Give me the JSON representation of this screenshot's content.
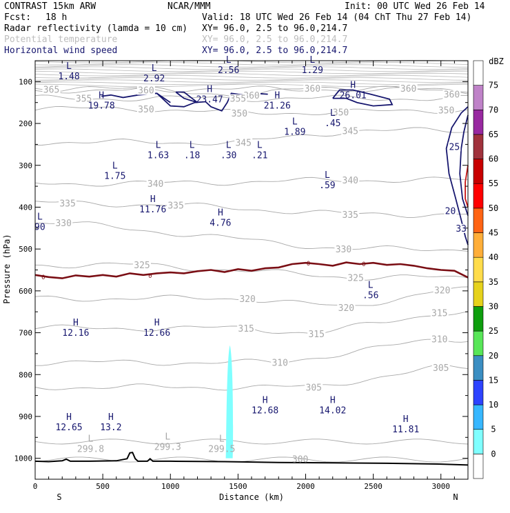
{
  "header": {
    "model": "CONTRAST 15km ARW",
    "org": "NCAR/MMM",
    "init": "Init: 00 UTC Wed 26 Feb 14",
    "fcst_label": "Fcst:",
    "fcst_value": "18 h",
    "valid": "Valid: 18 UTC Wed 26 Feb 14 (04 ChT Thu 27 Feb 14)",
    "fields": [
      {
        "name": "Radar reflectivity (lamda = 10 cm)",
        "xy": "XY=  96.0,  2.5 to  96.0,214.7",
        "color": "#000000"
      },
      {
        "name": "Potential temperature",
        "xy": "XY=  96.0,  2.5 to  96.0,214.7",
        "color": "#bdbdbd"
      },
      {
        "name": "Horizontal wind speed",
        "xy": "XY=  96.0,  2.5 to  96.0,214.7",
        "color": "#16166e"
      }
    ]
  },
  "chart_data": {
    "type": "cross-section",
    "xlabel": "Distance (km)",
    "ylabel": "Pressure (hPa)",
    "xlim": [
      0,
      3200
    ],
    "ylim": [
      1050,
      50
    ],
    "x_ticks": [
      0,
      500,
      1000,
      1500,
      2000,
      2500,
      3000
    ],
    "y_ticks": [
      100,
      200,
      300,
      400,
      500,
      600,
      700,
      800,
      900,
      1000
    ],
    "end_labels": {
      "left": "S",
      "right": "N"
    },
    "theta_isolines": [
      {
        "value": "365",
        "x": 120,
        "p": 118
      },
      {
        "value": "360",
        "x": 820,
        "p": 120
      },
      {
        "value": "360",
        "x": 1600,
        "p": 132
      },
      {
        "value": "360",
        "x": 2050,
        "p": 116
      },
      {
        "value": "360",
        "x": 2760,
        "p": 116
      },
      {
        "value": "360",
        "x": 3080,
        "p": 130
      },
      {
        "value": "355",
        "x": 360,
        "p": 140
      },
      {
        "value": "355",
        "x": 1500,
        "p": 140
      },
      {
        "value": "350",
        "x": 820,
        "p": 165
      },
      {
        "value": "350",
        "x": 1510,
        "p": 175
      },
      {
        "value": "350",
        "x": 2260,
        "p": 173
      },
      {
        "value": "350",
        "x": 3040,
        "p": 168
      },
      {
        "value": "345",
        "x": 1540,
        "p": 245
      },
      {
        "value": "345",
        "x": 2330,
        "p": 217
      },
      {
        "value": "340",
        "x": 890,
        "p": 343
      },
      {
        "value": "340",
        "x": 2330,
        "p": 335
      },
      {
        "value": "335",
        "x": 240,
        "p": 390
      },
      {
        "value": "335",
        "x": 1040,
        "p": 395
      },
      {
        "value": "335",
        "x": 2330,
        "p": 417
      },
      {
        "value": "330",
        "x": 210,
        "p": 437
      },
      {
        "value": "330",
        "x": 2280,
        "p": 500
      },
      {
        "value": "325",
        "x": 790,
        "p": 538
      },
      {
        "value": "325",
        "x": 2370,
        "p": 568
      },
      {
        "value": "320",
        "x": 1570,
        "p": 618
      },
      {
        "value": "320",
        "x": 2300,
        "p": 640
      },
      {
        "value": "320",
        "x": 3010,
        "p": 598
      },
      {
        "value": "315",
        "x": 1560,
        "p": 689
      },
      {
        "value": "315",
        "x": 2080,
        "p": 702
      },
      {
        "value": "315",
        "x": 2990,
        "p": 652
      },
      {
        "value": "310",
        "x": 1810,
        "p": 771
      },
      {
        "value": "310",
        "x": 2990,
        "p": 715
      },
      {
        "value": "305",
        "x": 2060,
        "p": 830
      },
      {
        "value": "305",
        "x": 3000,
        "p": 783
      }
    ],
    "surface_theta": [
      {
        "symbol": "L",
        "x": 410,
        "p": 960,
        "value": "299.8"
      },
      {
        "symbol": "L",
        "x": 980,
        "p": 955,
        "value": "299.3"
      },
      {
        "symbol": "L",
        "x": 1380,
        "p": 960,
        "value": "299.5"
      },
      {
        "symbol": "",
        "x": 1960,
        "p": 1003,
        "value": "300"
      }
    ],
    "wind_extrema": [
      {
        "symbol": "L",
        "x": 250,
        "p": 70,
        "value": "1.48"
      },
      {
        "symbol": "L",
        "x": 880,
        "p": 75,
        "value": "2.92"
      },
      {
        "symbol": "L",
        "x": 1430,
        "p": 55,
        "value": "2.56"
      },
      {
        "symbol": "L",
        "x": 2050,
        "p": 55,
        "value": "1.29"
      },
      {
        "symbol": "H",
        "x": 490,
        "p": 140,
        "value": "19.78"
      },
      {
        "symbol": "H",
        "x": 1290,
        "p": 125,
        "value": "23.47"
      },
      {
        "symbol": "H",
        "x": 1790,
        "p": 140,
        "value": "21.26"
      },
      {
        "symbol": "H",
        "x": 2350,
        "p": 115,
        "value": "26.01"
      },
      {
        "symbol": "L",
        "x": 1920,
        "p": 202,
        "value": "1.89"
      },
      {
        "symbol": "L",
        "x": 2200,
        "p": 182,
        "value": ".45"
      },
      {
        "symbol": "L",
        "x": 910,
        "p": 258,
        "value": "1.63"
      },
      {
        "symbol": "L",
        "x": 1160,
        "p": 258,
        "value": ".18"
      },
      {
        "symbol": "L",
        "x": 1430,
        "p": 258,
        "value": ".30"
      },
      {
        "symbol": "L",
        "x": 1660,
        "p": 258,
        "value": ".21"
      },
      {
        "symbol": "L",
        "x": 590,
        "p": 308,
        "value": "1.75"
      },
      {
        "symbol": "L",
        "x": 2160,
        "p": 330,
        "value": ".59"
      },
      {
        "symbol": "H",
        "x": 870,
        "p": 388,
        "value": "11.76"
      },
      {
        "symbol": "H",
        "x": 1370,
        "p": 420,
        "value": "4.76"
      },
      {
        "symbol": "L",
        "x": 35,
        "p": 430,
        "value": "90"
      },
      {
        "symbol": "L",
        "x": 2480,
        "p": 593,
        "value": ".56"
      },
      {
        "symbol": "H",
        "x": 300,
        "p": 683,
        "value": "12.16"
      },
      {
        "symbol": "H",
        "x": 900,
        "p": 683,
        "value": "12.66"
      },
      {
        "symbol": "H",
        "x": 1700,
        "p": 868,
        "value": "12.68"
      },
      {
        "symbol": "H",
        "x": 2200,
        "p": 868,
        "value": "14.02"
      },
      {
        "symbol": "H",
        "x": 2740,
        "p": 913,
        "value": "11.81"
      },
      {
        "symbol": "H",
        "x": 250,
        "p": 908,
        "value": "12.65"
      },
      {
        "symbol": "H",
        "x": 560,
        "p": 908,
        "value": "13.2"
      }
    ],
    "wind_contour_labels": [
      {
        "value": "25",
        "x": 3100,
        "p": 255
      },
      {
        "value": "20",
        "x": 3070,
        "p": 408
      },
      {
        "value": "33",
        "x": 3150,
        "p": 450
      }
    ],
    "freezing_level": {
      "label": "0",
      "label_positions": [
        {
          "x": 60,
          "p": 566
        },
        {
          "x": 850,
          "p": 562
        },
        {
          "x": 2020,
          "p": 533
        },
        {
          "x": 2430,
          "p": 534
        }
      ],
      "points": [
        [
          0,
          562
        ],
        [
          100,
          567
        ],
        [
          200,
          570
        ],
        [
          300,
          563
        ],
        [
          400,
          566
        ],
        [
          500,
          562
        ],
        [
          600,
          566
        ],
        [
          700,
          558
        ],
        [
          800,
          562
        ],
        [
          900,
          558
        ],
        [
          1000,
          556
        ],
        [
          1100,
          558
        ],
        [
          1200,
          553
        ],
        [
          1300,
          550
        ],
        [
          1400,
          555
        ],
        [
          1500,
          548
        ],
        [
          1600,
          552
        ],
        [
          1700,
          546
        ],
        [
          1800,
          544
        ],
        [
          1900,
          536
        ],
        [
          2000,
          533
        ],
        [
          2100,
          536
        ],
        [
          2200,
          540
        ],
        [
          2300,
          532
        ],
        [
          2400,
          536
        ],
        [
          2500,
          533
        ],
        [
          2600,
          538
        ],
        [
          2700,
          536
        ],
        [
          2800,
          540
        ],
        [
          2900,
          546
        ],
        [
          3000,
          550
        ],
        [
          3100,
          552
        ],
        [
          3200,
          568
        ]
      ]
    },
    "reflectivity_cells": [
      {
        "dbz": 5,
        "x_center": 1440,
        "p_top": 730,
        "p_bottom": 1000
      }
    ],
    "terrain": {
      "points": [
        [
          0,
          1007
        ],
        [
          100,
          1008
        ],
        [
          200,
          1006
        ],
        [
          230,
          1002
        ],
        [
          260,
          1007
        ],
        [
          400,
          1007
        ],
        [
          600,
          1006
        ],
        [
          680,
          1001
        ],
        [
          700,
          987
        ],
        [
          720,
          986
        ],
        [
          740,
          1001
        ],
        [
          760,
          1007
        ],
        [
          830,
          1007
        ],
        [
          850,
          1001
        ],
        [
          870,
          1007
        ],
        [
          1000,
          1007
        ],
        [
          1400,
          1008
        ],
        [
          1800,
          1010
        ],
        [
          2200,
          1011
        ],
        [
          2600,
          1012
        ],
        [
          3000,
          1014
        ],
        [
          3200,
          1016
        ]
      ]
    },
    "colorbar": {
      "title": "dBZ",
      "levels": [
        "0",
        "5",
        "10",
        "15",
        "20",
        "25",
        "30",
        "35",
        "40",
        "45",
        "50",
        "55",
        "60",
        "65",
        "70",
        "75"
      ],
      "colors": [
        "#ffffff",
        "#7fffff",
        "#37b7ff",
        "#2d43ff",
        "#3b8ec2",
        "#58e658",
        "#0e9e0e",
        "#e6d21c",
        "#ffdc4b",
        "#ffae39",
        "#ff6414",
        "#ff0000",
        "#c80000",
        "#a0323c",
        "#9828a0",
        "#bf82c8",
        "#ffffff"
      ]
    }
  }
}
